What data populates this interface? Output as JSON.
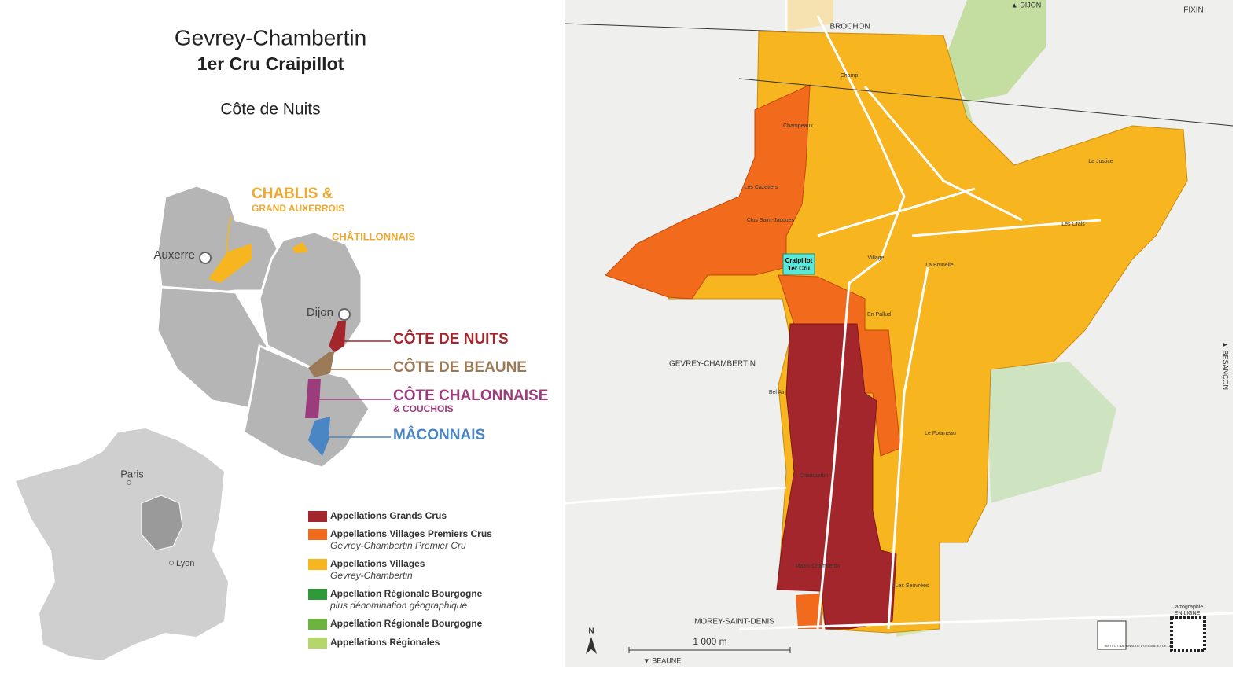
{
  "header": {
    "title": "Gevrey-Chambertin",
    "subtitle": "1er Cru Craipillot",
    "region": "Côte de Nuits"
  },
  "region_map": {
    "regions": [
      {
        "label": "CHABLIS &",
        "sublabel": "GRAND AUXERROIS"
      },
      {
        "label": "CHÂTILLONNAIS"
      },
      {
        "label": "CÔTE DE NUITS"
      },
      {
        "label": "CÔTE DE BEAUNE"
      },
      {
        "label": "CÔTE CHALONNAISE",
        "sublabel": "& COUCHOIS"
      },
      {
        "label": "MÂCONNAIS"
      }
    ],
    "cities": [
      "Auxerre",
      "Dijon"
    ]
  },
  "france_map": {
    "cities": [
      "Paris",
      "Lyon"
    ]
  },
  "legend": [
    {
      "label": "Appellations Grands Crus",
      "color": "#a3262c"
    },
    {
      "label": "Appellations Villages Premiers Crus",
      "sublabel": "Gevrey-Chambertin Premier Cru",
      "color": "#f26a1b"
    },
    {
      "label": "Appellations Villages",
      "sublabel": "Gevrey-Chambertin",
      "color": "#f7b520"
    },
    {
      "label": "Appellation Régionale Bourgogne",
      "sublabel": "plus dénomination géographique",
      "color": "#2e9a3a"
    },
    {
      "label": "Appellation Régionale Bourgogne",
      "color": "#6cb33f"
    },
    {
      "label": "Appellations Régionales",
      "color": "#b5d66a"
    }
  ],
  "map": {
    "places": [
      "BROCHON",
      "FIXIN",
      "GEVREY-CHAMBERTIN",
      "MOREY-SAINT-DENIS"
    ],
    "directions": [
      "▲ DIJON",
      "▼ BEAUNE",
      "▲ BESANÇON"
    ],
    "highlight": {
      "label": "Craipillot",
      "sublabel": "1er Cru"
    },
    "climats": [
      "Village",
      "La Justice",
      "Champ",
      "Bel Air",
      "Les Cazetiers",
      "Clos Saint-Jacques",
      "Champeaux",
      "Chambertin",
      "Mazis-Chambertin",
      "Les Crais",
      "En Pallud",
      "La Brunelle",
      "Le Fourneau",
      "Les Seuvrées"
    ],
    "scale": "1 000 m",
    "north": "N",
    "qr": {
      "label": "Cartographie",
      "sublabel": "EN LIGNE"
    },
    "logo": "INSTITUT NATIONAL DE L'ORIGINE ET DE LA QUALITÉ"
  }
}
